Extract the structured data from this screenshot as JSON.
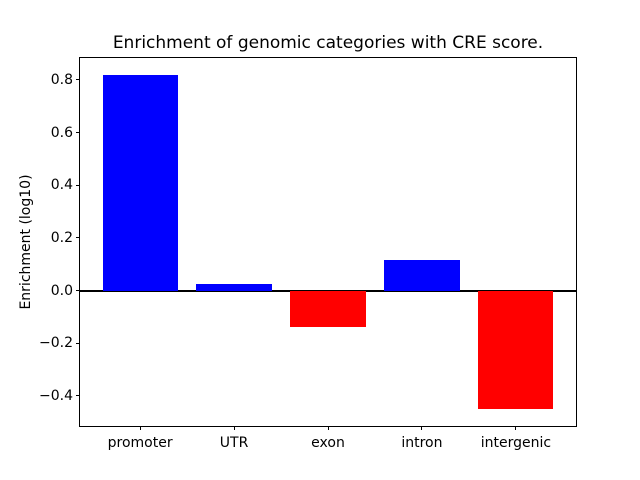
{
  "chart_data": {
    "type": "bar",
    "title": "Enrichment of genomic categories with CRE score.",
    "ylabel": "Enrichment (log10)",
    "xlabel": "",
    "categories": [
      "promoter",
      "UTR",
      "exon",
      "intron",
      "intergenic"
    ],
    "values": [
      0.82,
      0.025,
      -0.14,
      0.115,
      -0.45
    ],
    "positive_color": "#0000ff",
    "negative_color": "#ff0000",
    "axis_color": "#000000",
    "background_color": "#ffffff",
    "ylim": [
      -0.514,
      0.883
    ],
    "xlim": [
      -0.64,
      4.64
    ],
    "bar_width_fraction": 0.8,
    "yticks": [
      0.8,
      0.6,
      0.4,
      0.2,
      0.0,
      -0.2,
      -0.4
    ],
    "ytick_labels": [
      "0.8",
      "0.6",
      "0.4",
      "0.2",
      "0.0",
      "−0.2",
      "−0.4"
    ],
    "zero_line": true,
    "grid": false,
    "legend": false
  }
}
